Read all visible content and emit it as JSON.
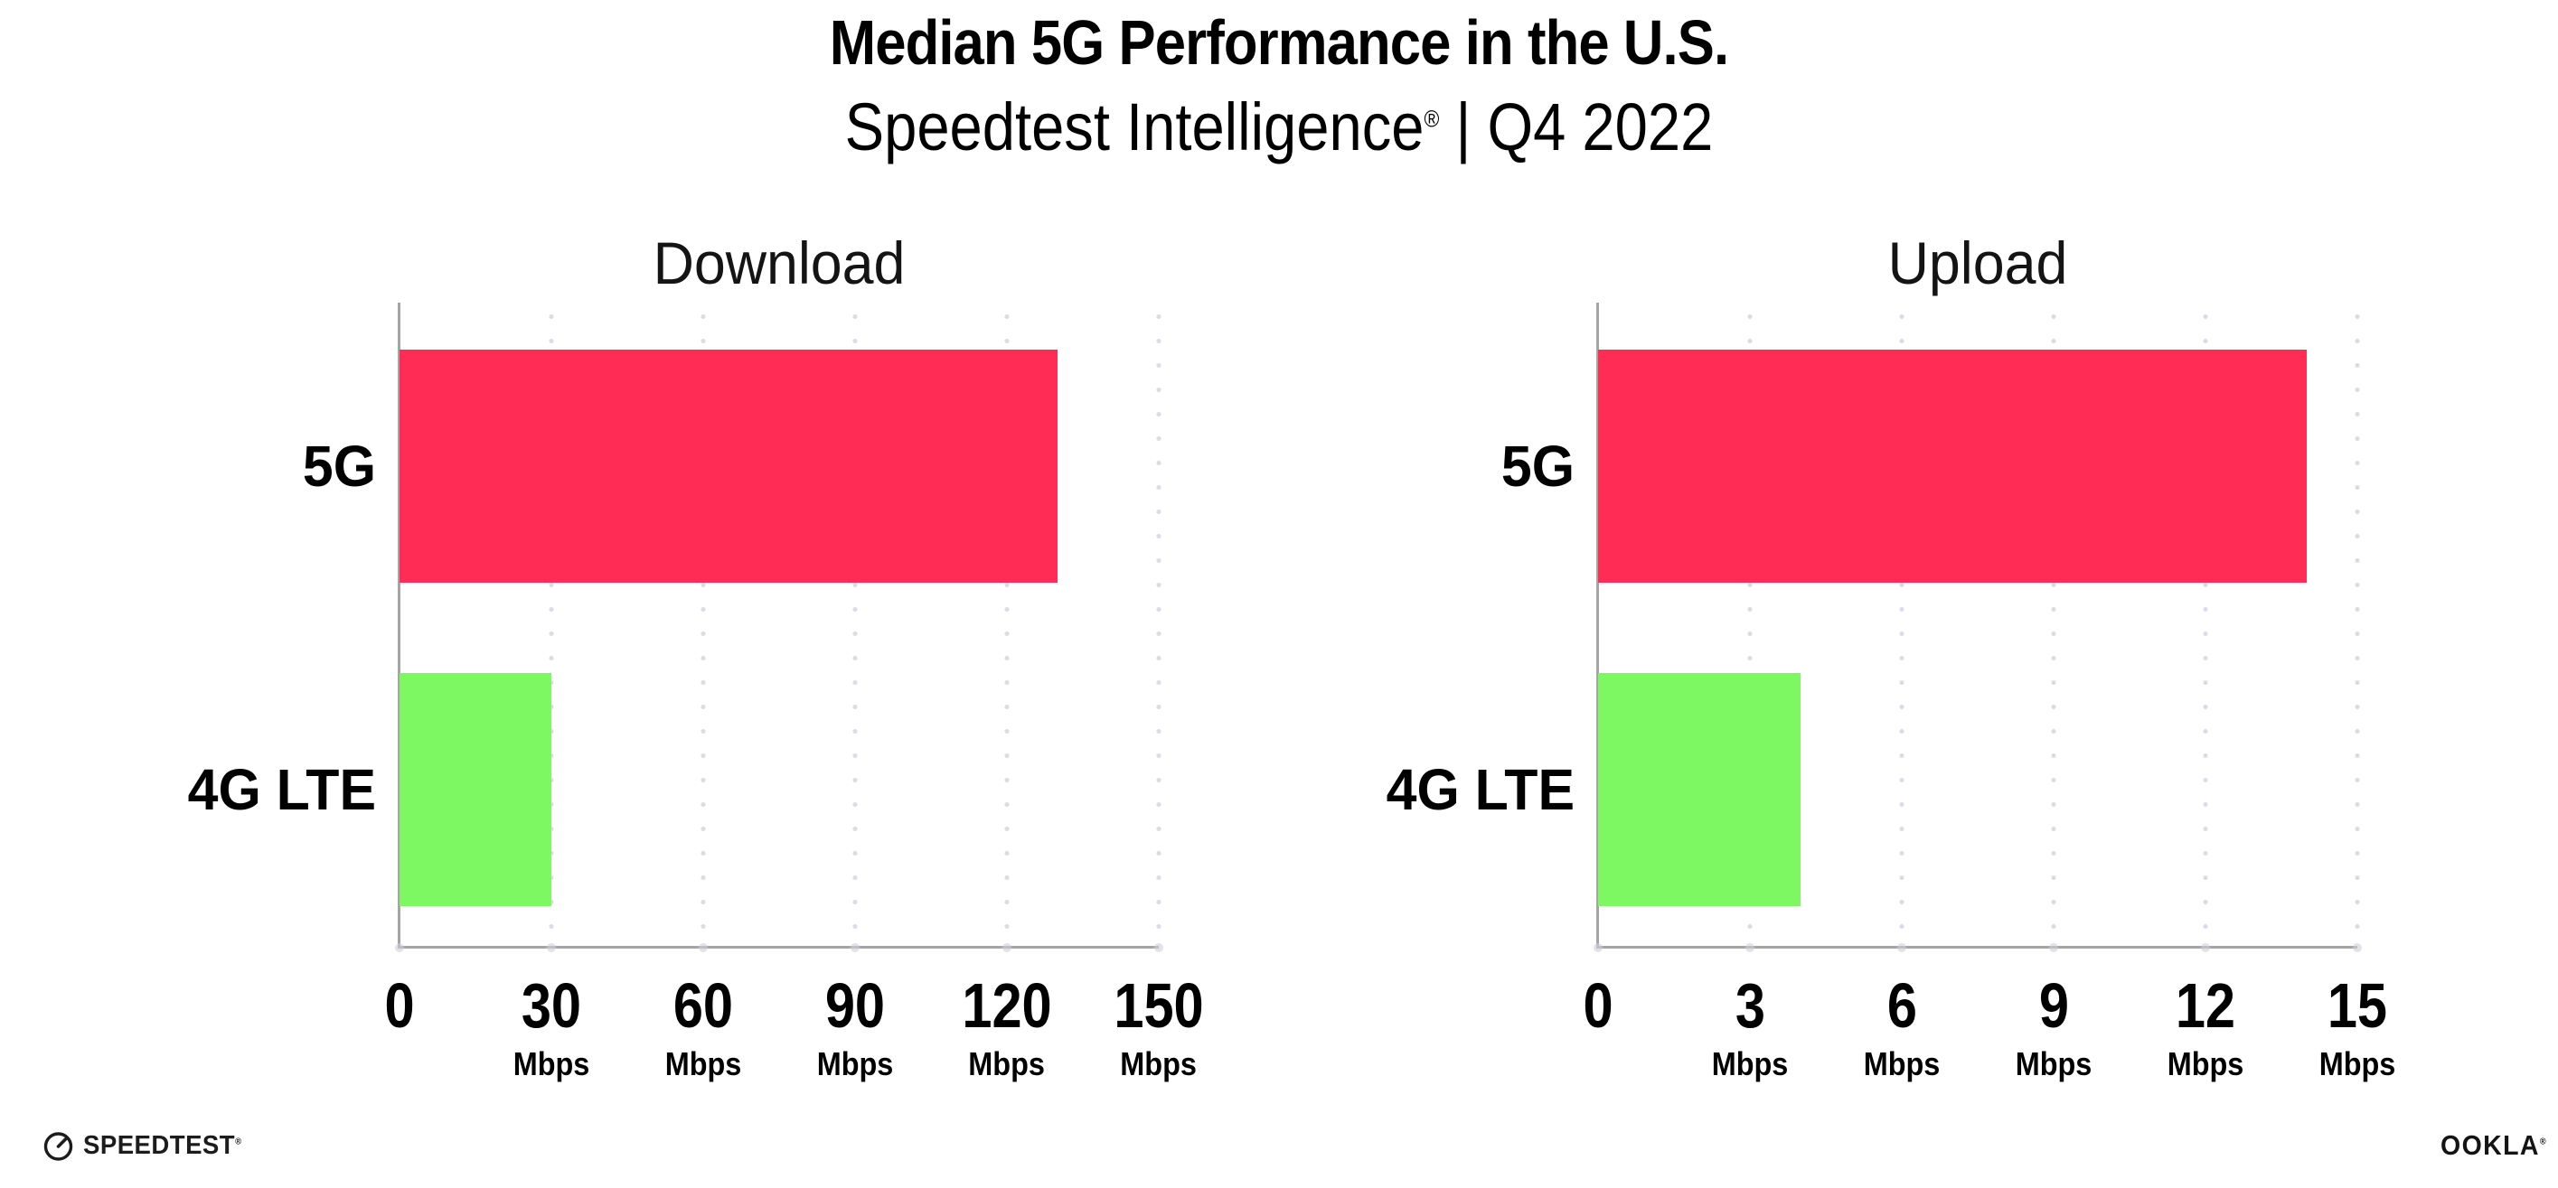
{
  "header": {
    "title": "Median 5G Performance in the U.S.",
    "subtitle_brand": "Speedtest Intelligence",
    "subtitle_mark": "®",
    "subtitle_rest": " | Q4 2022"
  },
  "footer": {
    "speedtest_label": "SPEEDTEST",
    "speedtest_mark": "®",
    "speedtest_icon": "gauge-icon",
    "ookla_label": "OOKLA",
    "ookla_mark": "®"
  },
  "colors": {
    "bar_5g": "#ff2d55",
    "bar_4g_lte": "#7df863",
    "axis": "#a5a5a5",
    "gridline_dots": "#dcdce6",
    "text": "#000000"
  },
  "chart_data": [
    {
      "type": "bar",
      "orientation": "horizontal",
      "title": "Download",
      "categories": [
        "5G",
        "4G LTE"
      ],
      "values": [
        130,
        30
      ],
      "unit": "Mbps",
      "xlabel": "",
      "ylabel": "",
      "xlim": [
        0,
        150
      ],
      "xticks": [
        0,
        30,
        60,
        90,
        120,
        150
      ],
      "bar_colors": [
        "#ff2d55",
        "#7df863"
      ],
      "grid": "vertical-dotted",
      "legend": "none"
    },
    {
      "type": "bar",
      "orientation": "horizontal",
      "title": "Upload",
      "categories": [
        "5G",
        "4G LTE"
      ],
      "values": [
        14,
        4
      ],
      "unit": "Mbps",
      "xlabel": "",
      "ylabel": "",
      "xlim": [
        0,
        15
      ],
      "xticks": [
        0,
        3,
        6,
        9,
        12,
        15
      ],
      "bar_colors": [
        "#ff2d55",
        "#7df863"
      ],
      "grid": "vertical-dotted",
      "legend": "none"
    }
  ]
}
